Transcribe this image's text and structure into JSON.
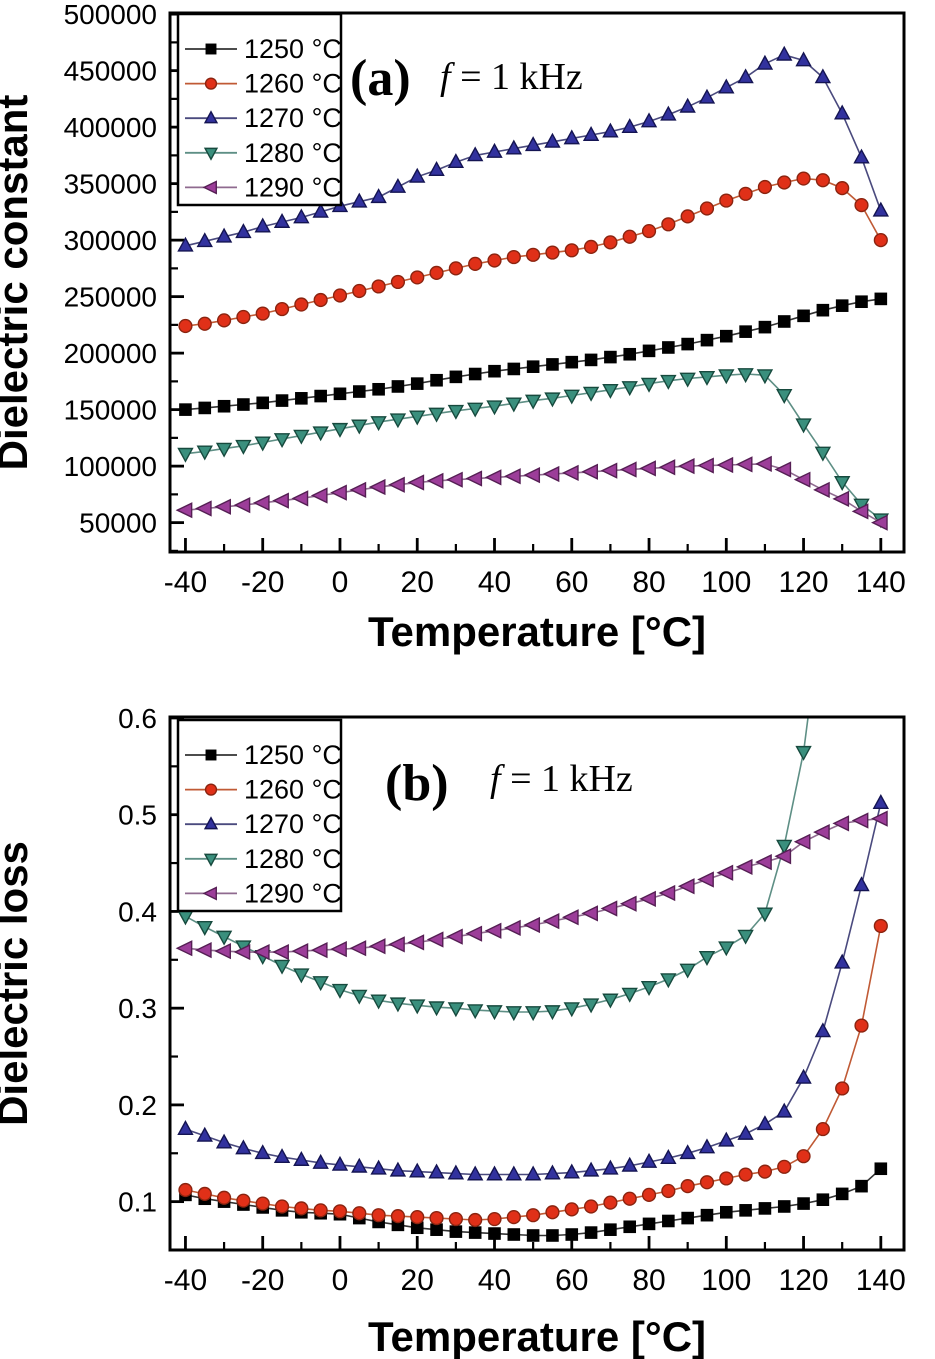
{
  "figure": {
    "background": "#ffffff",
    "frame_color": "#000000",
    "panels": [
      {
        "id": "a",
        "panel_label": "(a)",
        "freq_symbol": "f",
        "freq_text": " = 1 kHz",
        "xlabel": "Temperature [°C]",
        "ylabel": "Dielectric constant"
      },
      {
        "id": "b",
        "panel_label": "(b)",
        "freq_symbol": "f",
        "freq_text": " = 1 kHz",
        "xlabel": "Temperature [°C]",
        "ylabel": "Dielectric loss"
      }
    ]
  },
  "chart_data": [
    {
      "type": "line",
      "title": "(a)  f = 1 kHz",
      "xlabel": "Temperature [°C]",
      "ylabel": "Dielectric constant",
      "grid": false,
      "legend_position": "top-left",
      "xlim": [
        -44,
        146
      ],
      "ylim": [
        24000,
        501000
      ],
      "xticks": [
        -40,
        -20,
        0,
        20,
        40,
        60,
        80,
        100,
        120,
        140
      ],
      "yticks": [
        50000,
        100000,
        150000,
        200000,
        250000,
        300000,
        350000,
        400000,
        450000,
        500000
      ],
      "x": [
        -40,
        -35,
        -30,
        -25,
        -20,
        -15,
        -10,
        -5,
        0,
        5,
        10,
        15,
        20,
        25,
        30,
        35,
        40,
        45,
        50,
        55,
        60,
        65,
        70,
        75,
        80,
        85,
        90,
        95,
        100,
        105,
        110,
        115,
        120,
        125,
        130,
        135,
        140
      ],
      "series": [
        {
          "name": "1250 °C",
          "marker": "square",
          "color": "#000000",
          "edge": "#000000",
          "line_color": "#333333",
          "values": [
            150000,
            151500,
            153000,
            154500,
            156000,
            158000,
            160000,
            162000,
            164000,
            166000,
            168000,
            170500,
            173000,
            176000,
            179000,
            181500,
            184000,
            186000,
            188000,
            190000,
            192000,
            194000,
            196500,
            199000,
            202000,
            205000,
            208000,
            211500,
            215000,
            219000,
            223000,
            228000,
            233000,
            238000,
            242000,
            245500,
            248000
          ]
        },
        {
          "name": "1260 °C",
          "marker": "circle",
          "color": "#e03018",
          "edge": "#8a2410",
          "line_color": "#c05a35",
          "values": [
            224000,
            226000,
            229000,
            232000,
            235000,
            239000,
            243000,
            247000,
            251000,
            255000,
            259000,
            263000,
            267000,
            271000,
            275000,
            279000,
            282000,
            285000,
            287000,
            289000,
            291000,
            294000,
            298000,
            303000,
            308000,
            314000,
            321000,
            328000,
            335000,
            341000,
            347000,
            351000,
            354500,
            353000,
            346000,
            331000,
            300000
          ]
        },
        {
          "name": "1270 °C",
          "marker": "triangle-up",
          "color": "#32329e",
          "edge": "#141452",
          "line_color": "#4a4a7e",
          "values": [
            295000,
            299000,
            303000,
            307000,
            312000,
            316000,
            320000,
            325000,
            330000,
            334000,
            338000,
            347000,
            356000,
            362000,
            369000,
            375000,
            378000,
            381000,
            384000,
            387000,
            390000,
            393000,
            396000,
            400000,
            405000,
            411000,
            418000,
            426000,
            435000,
            444000,
            456000,
            464000,
            459000,
            444000,
            412000,
            373000,
            326000
          ]
        },
        {
          "name": "1280 °C",
          "marker": "triangle-down",
          "color": "#3a8f7d",
          "edge": "#174a3e",
          "line_color": "#5e8f85",
          "values": [
            111000,
            113000,
            115500,
            118000,
            121000,
            124000,
            127000,
            130000,
            133000,
            136000,
            139000,
            141500,
            144000,
            146500,
            149000,
            151000,
            153000,
            155500,
            158000,
            160000,
            162500,
            165000,
            167500,
            170000,
            173000,
            175500,
            177500,
            179000,
            180500,
            181500,
            180500,
            163000,
            137000,
            112000,
            86000,
            66000,
            53000
          ]
        },
        {
          "name": "1290 °C",
          "marker": "triangle-left",
          "color": "#9c3d99",
          "edge": "#551f54",
          "line_color": "#8f6a8f",
          "values": [
            61000,
            62500,
            64000,
            65500,
            67500,
            69500,
            71500,
            74000,
            76500,
            79000,
            81500,
            83500,
            85500,
            87000,
            88000,
            89000,
            90000,
            91000,
            92000,
            93000,
            94000,
            95000,
            96000,
            97000,
            98000,
            99000,
            100000,
            100500,
            101000,
            101500,
            102000,
            97000,
            88000,
            79000,
            71000,
            60000,
            50000
          ]
        }
      ]
    },
    {
      "type": "line",
      "title": "(b)  f = 1 kHz",
      "xlabel": "Temperature [°C]",
      "ylabel": "Dielectric loss",
      "grid": false,
      "legend_position": "top-left",
      "xlim": [
        -44,
        146
      ],
      "ylim": [
        0.05,
        0.601
      ],
      "xticks": [
        -40,
        -20,
        0,
        20,
        40,
        60,
        80,
        100,
        120,
        140
      ],
      "yticks": [
        0.1,
        0.2,
        0.3,
        0.4,
        0.5,
        0.6
      ],
      "x": [
        -40,
        -35,
        -30,
        -25,
        -20,
        -15,
        -10,
        -5,
        0,
        5,
        10,
        15,
        20,
        25,
        30,
        35,
        40,
        45,
        50,
        55,
        60,
        65,
        70,
        75,
        80,
        85,
        90,
        95,
        100,
        105,
        110,
        115,
        120,
        125,
        130,
        135,
        140
      ],
      "series": [
        {
          "name": "1250 °C",
          "marker": "square",
          "color": "#000000",
          "edge": "#000000",
          "line_color": "#333333",
          "values": [
            0.107,
            0.103,
            0.1,
            0.097,
            0.094,
            0.091,
            0.089,
            0.088,
            0.087,
            0.083,
            0.079,
            0.076,
            0.073,
            0.071,
            0.069,
            0.068,
            0.067,
            0.066,
            0.065,
            0.065,
            0.066,
            0.068,
            0.071,
            0.074,
            0.077,
            0.08,
            0.083,
            0.086,
            0.089,
            0.091,
            0.093,
            0.095,
            0.098,
            0.102,
            0.108,
            0.116,
            0.134
          ]
        },
        {
          "name": "1260 °C",
          "marker": "circle",
          "color": "#e03018",
          "edge": "#8a2410",
          "line_color": "#c05a35",
          "values": [
            0.112,
            0.108,
            0.104,
            0.101,
            0.098,
            0.095,
            0.093,
            0.091,
            0.09,
            0.088,
            0.086,
            0.085,
            0.084,
            0.083,
            0.082,
            0.081,
            0.082,
            0.084,
            0.086,
            0.089,
            0.092,
            0.095,
            0.099,
            0.103,
            0.107,
            0.111,
            0.116,
            0.12,
            0.124,
            0.128,
            0.131,
            0.136,
            0.147,
            0.175,
            0.217,
            0.282,
            0.385
          ]
        },
        {
          "name": "1270 °C",
          "marker": "triangle-up",
          "color": "#32329e",
          "edge": "#141452",
          "line_color": "#4a4a7e",
          "values": [
            0.175,
            0.168,
            0.161,
            0.155,
            0.15,
            0.146,
            0.143,
            0.14,
            0.138,
            0.136,
            0.134,
            0.132,
            0.131,
            0.13,
            0.129,
            0.128,
            0.128,
            0.128,
            0.128,
            0.129,
            0.13,
            0.132,
            0.134,
            0.137,
            0.141,
            0.145,
            0.15,
            0.156,
            0.163,
            0.17,
            0.18,
            0.193,
            0.228,
            0.276,
            0.347,
            0.427,
            0.512
          ]
        },
        {
          "name": "1280 °C",
          "marker": "triangle-down",
          "color": "#3a8f7d",
          "edge": "#174a3e",
          "line_color": "#5e8f85",
          "values": [
            0.395,
            0.384,
            0.374,
            0.364,
            0.354,
            0.344,
            0.335,
            0.327,
            0.319,
            0.313,
            0.308,
            0.305,
            0.303,
            0.301,
            0.3,
            0.298,
            0.297,
            0.296,
            0.296,
            0.297,
            0.3,
            0.304,
            0.309,
            0.315,
            0.322,
            0.33,
            0.34,
            0.353,
            0.363,
            0.375,
            0.398,
            0.468,
            0.565,
            0.72,
            null,
            null,
            null
          ]
        },
        {
          "name": "1290 °C",
          "marker": "triangle-left",
          "color": "#9c3d99",
          "edge": "#551f54",
          "line_color": "#8f6a8f",
          "values": [
            0.362,
            0.36,
            0.359,
            0.358,
            0.358,
            0.358,
            0.359,
            0.36,
            0.361,
            0.362,
            0.364,
            0.366,
            0.368,
            0.371,
            0.374,
            0.377,
            0.38,
            0.383,
            0.386,
            0.39,
            0.394,
            0.398,
            0.403,
            0.408,
            0.413,
            0.419,
            0.426,
            0.433,
            0.44,
            0.446,
            0.451,
            0.457,
            0.472,
            0.482,
            0.491,
            0.494,
            0.496
          ]
        }
      ]
    }
  ]
}
